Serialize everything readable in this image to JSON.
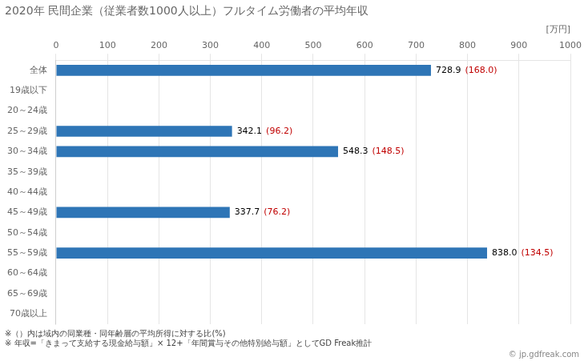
{
  "chart_data": {
    "type": "bar",
    "orientation": "horizontal",
    "title": "2020年 民間企業（従業者数1000人以上）フルタイム労働者の平均年収",
    "xlabel": "[万円]",
    "categories": [
      "全体",
      "19歳以下",
      "20～24歳",
      "25～29歳",
      "30～34歳",
      "35～39歳",
      "40～44歳",
      "45～49歳",
      "50～54歳",
      "55～59歳",
      "60～64歳",
      "65～69歳",
      "70歳以上"
    ],
    "values": [
      728.9,
      null,
      null,
      342.1,
      548.3,
      null,
      null,
      337.7,
      null,
      838.0,
      null,
      null,
      null
    ],
    "value_labels": [
      "728.9",
      null,
      null,
      "342.1",
      "548.3",
      null,
      null,
      "337.7",
      null,
      "838.0",
      null,
      null,
      null
    ],
    "color": "#2e75b6",
    "data_labels": true,
    "ratios": {
      "values": [
        168.0,
        null,
        null,
        96.2,
        148.5,
        null,
        null,
        76.2,
        null,
        134.5,
        null,
        null,
        null
      ],
      "value_labels": [
        "(168.0)",
        null,
        null,
        "(96.2)",
        "(148.5)",
        null,
        null,
        "(76.2)",
        null,
        "(134.5)",
        null,
        null,
        null
      ],
      "color": "#c00000"
    },
    "xlim": [
      0,
      1000
    ],
    "xticks": [
      0,
      100,
      200,
      300,
      400,
      500,
      600,
      700,
      800,
      900,
      1000
    ],
    "grid": true,
    "footnotes": [
      "※（）内は域内の同業種・同年齢層の平均所得に対する比(%)",
      "※ 年収=「きまって支給する現金給与額」× 12+「年間賞与その他特別給与額」としてGD Freak推計"
    ],
    "watermark": "© jp.gdfreak.com"
  }
}
